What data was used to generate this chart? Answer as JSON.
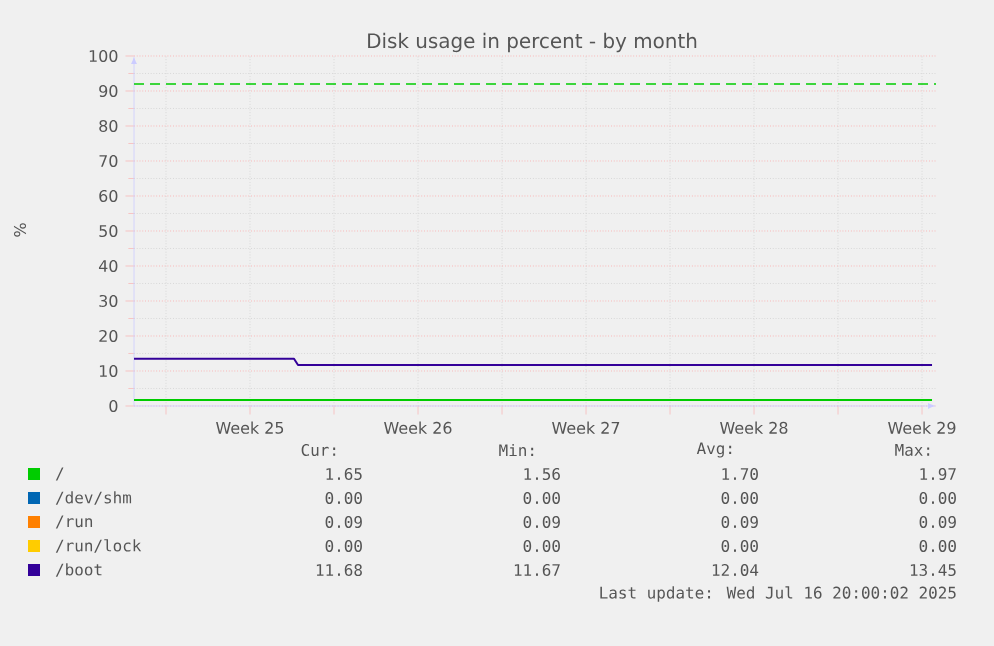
{
  "chart_data": {
    "type": "line",
    "title": "Disk usage in percent - by month",
    "ylabel": "%",
    "xlim": [
      "2025-06-14T16:00",
      "2025-07-18T02:00"
    ],
    "ylim": [
      0,
      100
    ],
    "xticks": [
      {
        "value": "2025-06-16",
        "label": null
      },
      {
        "value": "2025-06-19T12:00",
        "label": "Week 25"
      },
      {
        "value": "2025-06-23",
        "label": null
      },
      {
        "value": "2025-06-26T12:00",
        "label": "Week 26"
      },
      {
        "value": "2025-06-30",
        "label": null
      },
      {
        "value": "2025-07-03T12:00",
        "label": "Week 27"
      },
      {
        "value": "2025-07-07",
        "label": null
      },
      {
        "value": "2025-07-10T12:00",
        "label": "Week 28"
      },
      {
        "value": "2025-07-14",
        "label": null
      },
      {
        "value": "2025-07-17T12:00",
        "label": "Week 29"
      }
    ],
    "yticks": [
      0,
      10,
      20,
      30,
      40,
      50,
      60,
      70,
      80,
      90,
      100
    ],
    "grid": true,
    "legend": "bottom",
    "line_style": "solid",
    "marker": "none",
    "x": [
      "2025-06-14T16:00",
      "2025-06-21T08:00",
      "2025-06-21T12:00",
      "2025-07-17T22:00"
    ],
    "series": [
      {
        "name": "/",
        "color": "#00cc00",
        "values": [
          1.7,
          1.7,
          1.7,
          1.7
        ]
      },
      {
        "name": "/dev/shm",
        "color": "#0066b3",
        "values": [
          null,
          null,
          null,
          null
        ]
      },
      {
        "name": "/run",
        "color": "#ff8000",
        "values": [
          null,
          null,
          null,
          null
        ]
      },
      {
        "name": "/run/lock",
        "color": "#ffcc00",
        "values": [
          null,
          null,
          null,
          null
        ]
      },
      {
        "name": "/boot",
        "color": "#330099",
        "values": [
          13.5,
          13.5,
          11.7,
          11.7
        ]
      }
    ],
    "ref_lines": [
      {
        "axis": "y",
        "value": 92,
        "color": "#00cc00",
        "line_style": "dashed"
      }
    ],
    "annotations": [
      "Cur:",
      "Min:",
      "Avg:",
      "Max:",
      "1.65",
      "1.56",
      "1.70",
      "1.97",
      "0.00",
      "0.00",
      "0.00",
      "0.00",
      "0.09",
      "0.09",
      "0.09",
      "0.09",
      "0.00",
      "0.00",
      "0.00",
      "0.00",
      "11.68",
      "11.67",
      "12.04",
      "13.45",
      "Last update: Wed Jul 16 20:00:02 2025"
    ]
  }
}
